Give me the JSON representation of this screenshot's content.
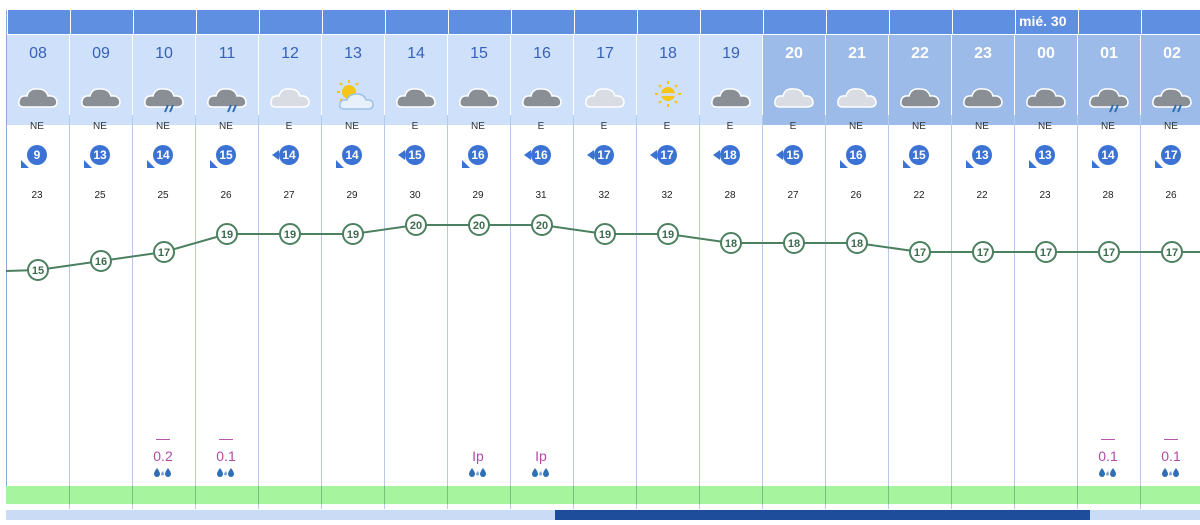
{
  "day_header": "mié. 30",
  "colors": {
    "header": "#5f8fe0",
    "band_day": "#cfe0fa",
    "band_night": "#9dbbe8",
    "wind_badge": "#3b72d4",
    "temp_line": "#4d8060",
    "precip_text": "#b34aa6",
    "green_strip": "#a6f59e"
  },
  "hours": [
    {
      "hour": "08",
      "icon": "cloud-icon",
      "wind_dir": "NE",
      "wind_speed": "9",
      "wind_arrow": "sw",
      "gust": "23",
      "temp": "15",
      "precip": "",
      "precip_mark": "",
      "drops": ""
    },
    {
      "hour": "09",
      "icon": "cloud-icon",
      "wind_dir": "NE",
      "wind_speed": "13",
      "wind_arrow": "sw",
      "gust": "25",
      "temp": "16",
      "precip": "",
      "precip_mark": "",
      "drops": ""
    },
    {
      "hour": "10",
      "icon": "rain-cloud-icon",
      "wind_dir": "NE",
      "wind_speed": "14",
      "wind_arrow": "sw",
      "gust": "25",
      "temp": "17",
      "precip": "0.2",
      "precip_mark": "—",
      "drops": "💧💧"
    },
    {
      "hour": "11",
      "icon": "rain-cloud-icon",
      "wind_dir": "NE",
      "wind_speed": "15",
      "wind_arrow": "sw",
      "gust": "26",
      "temp": "19",
      "precip": "0.1",
      "precip_mark": "—",
      "drops": "💧💧"
    },
    {
      "hour": "12",
      "icon": "cloud-light-icon",
      "wind_dir": "E",
      "wind_speed": "14",
      "wind_arrow": "w",
      "gust": "27",
      "temp": "19",
      "precip": "",
      "precip_mark": "",
      "drops": ""
    },
    {
      "hour": "13",
      "icon": "sun-cloud-icon",
      "wind_dir": "NE",
      "wind_speed": "14",
      "wind_arrow": "sw",
      "gust": "29",
      "temp": "19",
      "precip": "",
      "precip_mark": "",
      "drops": ""
    },
    {
      "hour": "14",
      "icon": "cloud-icon",
      "wind_dir": "E",
      "wind_speed": "15",
      "wind_arrow": "w",
      "gust": "30",
      "temp": "20",
      "precip": "",
      "precip_mark": "",
      "drops": ""
    },
    {
      "hour": "15",
      "icon": "cloud-icon",
      "wind_dir": "NE",
      "wind_speed": "16",
      "wind_arrow": "sw",
      "gust": "29",
      "temp": "20",
      "precip": "Ip",
      "precip_mark": "",
      "drops": "💧💧"
    },
    {
      "hour": "16",
      "icon": "cloud-icon",
      "wind_dir": "E",
      "wind_speed": "16",
      "wind_arrow": "w",
      "gust": "31",
      "temp": "20",
      "precip": "Ip",
      "precip_mark": "",
      "drops": "💧💧"
    },
    {
      "hour": "17",
      "icon": "cloud-light-icon",
      "wind_dir": "E",
      "wind_speed": "17",
      "wind_arrow": "w",
      "gust": "32",
      "temp": "19",
      "precip": "",
      "precip_mark": "",
      "drops": ""
    },
    {
      "hour": "18",
      "icon": "sun-haze-icon",
      "wind_dir": "E",
      "wind_speed": "17",
      "wind_arrow": "w",
      "gust": "32",
      "temp": "19",
      "precip": "",
      "precip_mark": "",
      "drops": ""
    },
    {
      "hour": "19",
      "icon": "cloud-icon",
      "wind_dir": "E",
      "wind_speed": "18",
      "wind_arrow": "w",
      "gust": "28",
      "temp": "18",
      "precip": "",
      "precip_mark": "",
      "drops": ""
    },
    {
      "hour": "20",
      "icon": "cloud-light-icon",
      "wind_dir": "E",
      "wind_speed": "15",
      "wind_arrow": "w",
      "gust": "27",
      "temp": "18",
      "precip": "",
      "precip_mark": "",
      "drops": ""
    },
    {
      "hour": "21",
      "icon": "cloud-light-icon",
      "wind_dir": "NE",
      "wind_speed": "16",
      "wind_arrow": "sw",
      "gust": "26",
      "temp": "18",
      "precip": "",
      "precip_mark": "",
      "drops": ""
    },
    {
      "hour": "22",
      "icon": "cloud-icon",
      "wind_dir": "NE",
      "wind_speed": "15",
      "wind_arrow": "sw",
      "gust": "22",
      "temp": "17",
      "precip": "",
      "precip_mark": "",
      "drops": ""
    },
    {
      "hour": "23",
      "icon": "cloud-icon",
      "wind_dir": "NE",
      "wind_speed": "13",
      "wind_arrow": "sw",
      "gust": "22",
      "temp": "17",
      "precip": "",
      "precip_mark": "",
      "drops": ""
    },
    {
      "hour": "00",
      "icon": "cloud-icon",
      "wind_dir": "NE",
      "wind_speed": "13",
      "wind_arrow": "sw",
      "gust": "23",
      "temp": "17",
      "precip": "",
      "precip_mark": "",
      "drops": ""
    },
    {
      "hour": "01",
      "icon": "rain-cloud-icon",
      "wind_dir": "NE",
      "wind_speed": "14",
      "wind_arrow": "sw",
      "gust": "28",
      "temp": "17",
      "precip": "0.1",
      "precip_mark": "—",
      "drops": "💧💧"
    },
    {
      "hour": "02",
      "icon": "rain-cloud-icon",
      "wind_dir": "NE",
      "wind_speed": "17",
      "wind_arrow": "sw",
      "gust": "26",
      "temp": "17",
      "precip": "0.1",
      "precip_mark": "—",
      "drops": "💧💧"
    }
  ],
  "scroll_position": 0.46
}
